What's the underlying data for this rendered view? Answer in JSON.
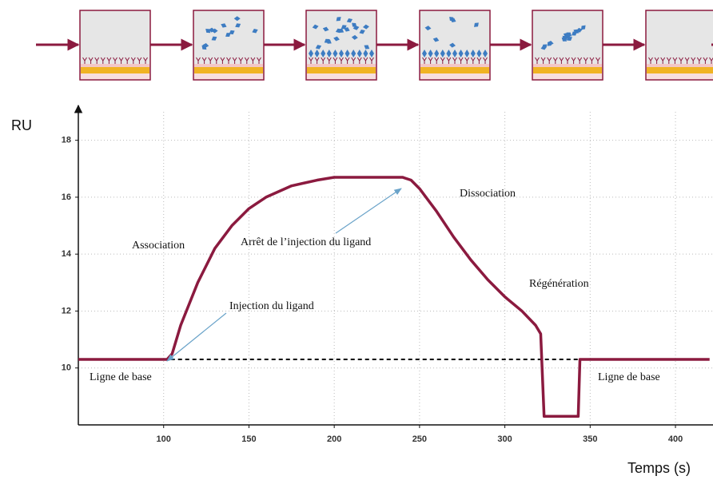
{
  "chart_data": {
    "type": "line",
    "y_label": "RU",
    "x_label": "Temps (s)",
    "xlim": [
      50,
      422
    ],
    "ylim": [
      8,
      19
    ],
    "xticks": [
      100,
      150,
      200,
      250,
      300,
      350,
      400
    ],
    "yticks": [
      10,
      12,
      14,
      16,
      18
    ],
    "grid": true,
    "series": [
      {
        "color": "#8b1a3f",
        "x": [
          50,
          102,
          105,
          110,
          120,
          130,
          140,
          150,
          160,
          175,
          190,
          200,
          240,
          245,
          250,
          260,
          270,
          280,
          290,
          300,
          310,
          318,
          321,
          323,
          343,
          344,
          420
        ],
        "values": [
          10.3,
          10.3,
          10.5,
          11.5,
          13.0,
          14.2,
          15.0,
          15.6,
          16.0,
          16.4,
          16.6,
          16.7,
          16.7,
          16.6,
          16.3,
          15.5,
          14.6,
          13.8,
          13.1,
          12.5,
          12.0,
          11.5,
          11.2,
          8.3,
          8.3,
          10.3,
          10.3
        ]
      }
    ],
    "reference_line": {
      "y": 10.3,
      "x": [
        100,
        345
      ],
      "color": "#000000"
    },
    "annotations": [
      "Association",
      "Arrêt de l’injection  du ligand",
      "Dissociation",
      "Régénération",
      "Injection  du ligand",
      "Ligne  de base",
      "Ligne  de base"
    ]
  }
}
